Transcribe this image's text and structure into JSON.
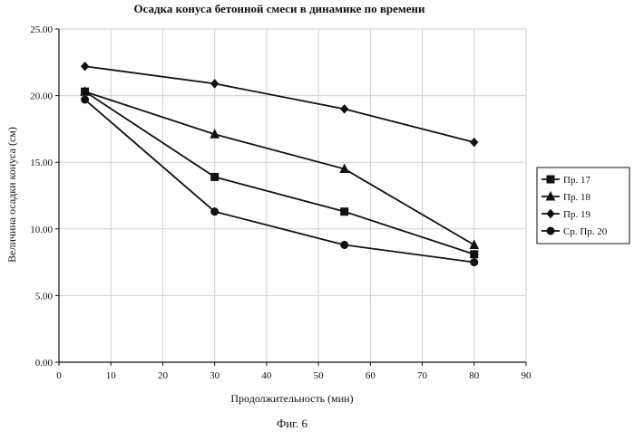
{
  "chart_data": {
    "type": "line",
    "title": "Осадка конуса бетонной смеси в динамике по времени",
    "xlabel": "Продолжительность (мин)",
    "ylabel": "Величина осадки конуса (см)",
    "xlim": [
      0,
      90
    ],
    "ylim": [
      0,
      25
    ],
    "x_ticks": [
      "0",
      "10",
      "20",
      "30",
      "40",
      "50",
      "60",
      "70",
      "80",
      "90"
    ],
    "y_ticks": [
      "0.00",
      "5.00",
      "10.00",
      "15.00",
      "20.00",
      "25.00"
    ],
    "grid": true,
    "legend_position": "right",
    "x": [
      5,
      30,
      55,
      80
    ],
    "series": [
      {
        "name": "Пр. 17",
        "marker": "square",
        "values": [
          20.3,
          13.9,
          11.3,
          8.1
        ]
      },
      {
        "name": "Пр. 18",
        "marker": "triangle",
        "values": [
          20.3,
          17.1,
          14.5,
          8.8
        ]
      },
      {
        "name": "Пр. 19",
        "marker": "diamond",
        "values": [
          22.2,
          20.9,
          19.0,
          16.5
        ]
      },
      {
        "name": "Ср. Пр. 20",
        "marker": "circle",
        "values": [
          19.7,
          11.3,
          8.8,
          7.5
        ]
      }
    ],
    "caption": "Фиг. 6"
  }
}
